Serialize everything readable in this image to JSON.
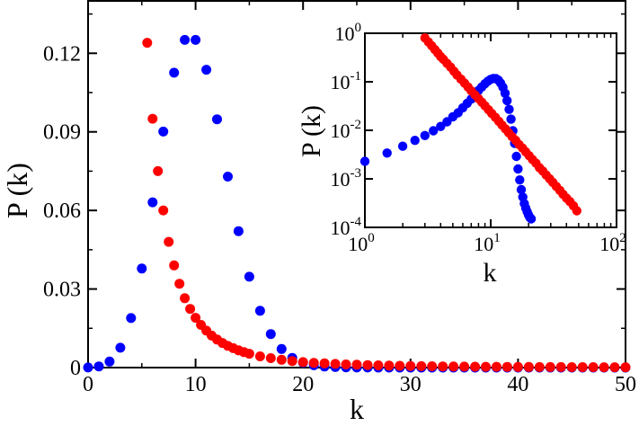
{
  "chart_data": [
    {
      "type": "scatter",
      "title": "",
      "xlabel": "k",
      "ylabel": "P (k)",
      "xlim": [
        0,
        50
      ],
      "ylim": [
        0,
        0.14
      ],
      "x_scale": "linear",
      "y_scale": "linear",
      "grid": false,
      "x_ticks": [
        "0",
        "10",
        "20",
        "30",
        "40",
        "50"
      ],
      "y_ticks": [
        "0",
        "0.03",
        "0.06",
        "0.09",
        "0.12"
      ],
      "series": [
        {
          "color": "#0000ff",
          "x": [
            0,
            1,
            2,
            3,
            4,
            5,
            6,
            7,
            8,
            9,
            10,
            11,
            12,
            13,
            14,
            15,
            16,
            17,
            18,
            19,
            20,
            21,
            22,
            23,
            24,
            25,
            26,
            27,
            28,
            29,
            30,
            31,
            32,
            33,
            34,
            35,
            36,
            37,
            38,
            39,
            40,
            41,
            42,
            43,
            44,
            45,
            46,
            47,
            48,
            49,
            50
          ],
          "y": [
            5e-05,
            0.00045,
            0.0023,
            0.0076,
            0.0189,
            0.0378,
            0.0631,
            0.0901,
            0.1126,
            0.1251,
            0.1251,
            0.1137,
            0.0948,
            0.0729,
            0.0521,
            0.0347,
            0.0217,
            0.0128,
            0.0071,
            0.0037,
            0.0019,
            0.0009,
            0.0004,
            0.0002,
            0.0001,
            4e-05,
            2e-05,
            0,
            0,
            0,
            0,
            0,
            0,
            0,
            0,
            0,
            0,
            0,
            0,
            0,
            0,
            0,
            0,
            0,
            0,
            0,
            0,
            0,
            0,
            0,
            0
          ]
        },
        {
          "color": "#ff0000",
          "x": [
            5.5,
            6,
            6.5,
            7,
            7.5,
            8,
            8.5,
            9,
            9.5,
            10,
            10.5,
            11,
            11.5,
            12,
            12.5,
            13,
            13.5,
            14,
            14.5,
            15,
            16,
            17,
            18,
            19,
            20,
            21,
            22,
            23,
            24,
            25,
            26,
            27,
            28,
            29,
            30,
            31,
            32,
            33,
            34,
            35,
            36,
            37,
            38,
            39,
            40,
            41,
            42,
            43,
            44,
            45,
            46,
            47,
            48,
            49,
            50
          ],
          "y": [
            0.124,
            0.095,
            0.075,
            0.06,
            0.048,
            0.039,
            0.032,
            0.0265,
            0.0224,
            0.019,
            0.0163,
            0.0141,
            0.0122,
            0.0107,
            0.0094,
            0.0083,
            0.0074,
            0.0066,
            0.0059,
            0.0053,
            0.0043,
            0.0036,
            0.003,
            0.0025,
            0.0021,
            0.0018,
            0.0016,
            0.0014,
            0.0012,
            0.0011,
            0.00095,
            0.00085,
            0.00076,
            0.00068,
            0.00062,
            0.00056,
            0.0005,
            0.00046,
            0.00042,
            0.00038,
            0.00035,
            0.00032,
            0.0003,
            0.00027,
            0.00025,
            0.00023,
            0.00022,
            0.0002,
            0.00019,
            0.00018,
            0.00017,
            0.00016,
            0.00015,
            0.00014,
            0.00013
          ]
        }
      ]
    },
    {
      "type": "scatter",
      "title": "",
      "xlabel": "k",
      "ylabel": "P (k)",
      "xlim": [
        1,
        100
      ],
      "ylim": [
        0.0001,
        1
      ],
      "x_scale": "log",
      "y_scale": "log",
      "grid": false,
      "x_ticks": [
        {
          "base": "10",
          "exp": "0"
        },
        {
          "base": "10",
          "exp": "1"
        },
        {
          "base": "10",
          "exp": "2"
        }
      ],
      "y_ticks": [
        {
          "base": "10",
          "exp": "0"
        },
        {
          "base": "10",
          "exp": "-1"
        },
        {
          "base": "10",
          "exp": "-2"
        },
        {
          "base": "10",
          "exp": "-3"
        },
        {
          "base": "10",
          "exp": "-4"
        }
      ],
      "series": [
        {
          "color": "#0000ff",
          "x": [
            1,
            1.5,
            2,
            2.5,
            3,
            3.5,
            4,
            4.5,
            5,
            5.5,
            6,
            6.5,
            7,
            7.5,
            8,
            8.5,
            9,
            9.5,
            10,
            10.5,
            11,
            11.5,
            12,
            12.5,
            13,
            13.5,
            14,
            14.5,
            15,
            15.5,
            16,
            16.5,
            17,
            17.5,
            18,
            18.5,
            19,
            19.5,
            20,
            20.5,
            21
          ],
          "y": [
            0.0023,
            0.0034,
            0.0047,
            0.0062,
            0.0078,
            0.0098,
            0.012,
            0.015,
            0.019,
            0.023,
            0.029,
            0.036,
            0.044,
            0.054,
            0.066,
            0.078,
            0.091,
            0.103,
            0.112,
            0.117,
            0.116,
            0.108,
            0.094,
            0.077,
            0.058,
            0.041,
            0.027,
            0.017,
            0.0098,
            0.0054,
            0.0029,
            0.0016,
            0.00095,
            0.0006,
            0.00042,
            0.00031,
            0.00025,
            0.00021,
            0.00018,
            0.00016,
            0.00015
          ]
        },
        {
          "color": "#ff0000",
          "x": [
            3,
            3.2,
            3.4,
            3.6,
            3.8,
            4,
            4.2,
            4.5,
            4.8,
            5.1,
            5.4,
            5.8,
            6.2,
            6.6,
            7,
            7.5,
            8,
            8.5,
            9,
            9.6,
            10.2,
            10.9,
            11.6,
            12.3,
            13.1,
            13.9,
            14.8,
            15.8,
            16.8,
            17.9,
            19,
            20.2,
            21.5,
            22.9,
            24.4,
            25.9,
            27.6,
            29.4,
            31.2,
            33.2,
            35.4,
            37.6,
            40.1,
            42.6,
            45.4,
            48.3
          ],
          "y": [
            0.8,
            0.66,
            0.55,
            0.46,
            0.39,
            0.33,
            0.29,
            0.24,
            0.2,
            0.165,
            0.138,
            0.113,
            0.094,
            0.078,
            0.065,
            0.054,
            0.045,
            0.038,
            0.032,
            0.0265,
            0.0222,
            0.0185,
            0.0154,
            0.0128,
            0.0107,
            0.0089,
            0.0074,
            0.0062,
            0.0051,
            0.0043,
            0.0036,
            0.003,
            0.0025,
            0.0021,
            0.0017,
            0.00145,
            0.0012,
            0.001,
            0.00084,
            0.0007,
            0.00058,
            0.00048,
            0.0004,
            0.00034,
            0.00028,
            0.00022
          ]
        }
      ]
    }
  ]
}
